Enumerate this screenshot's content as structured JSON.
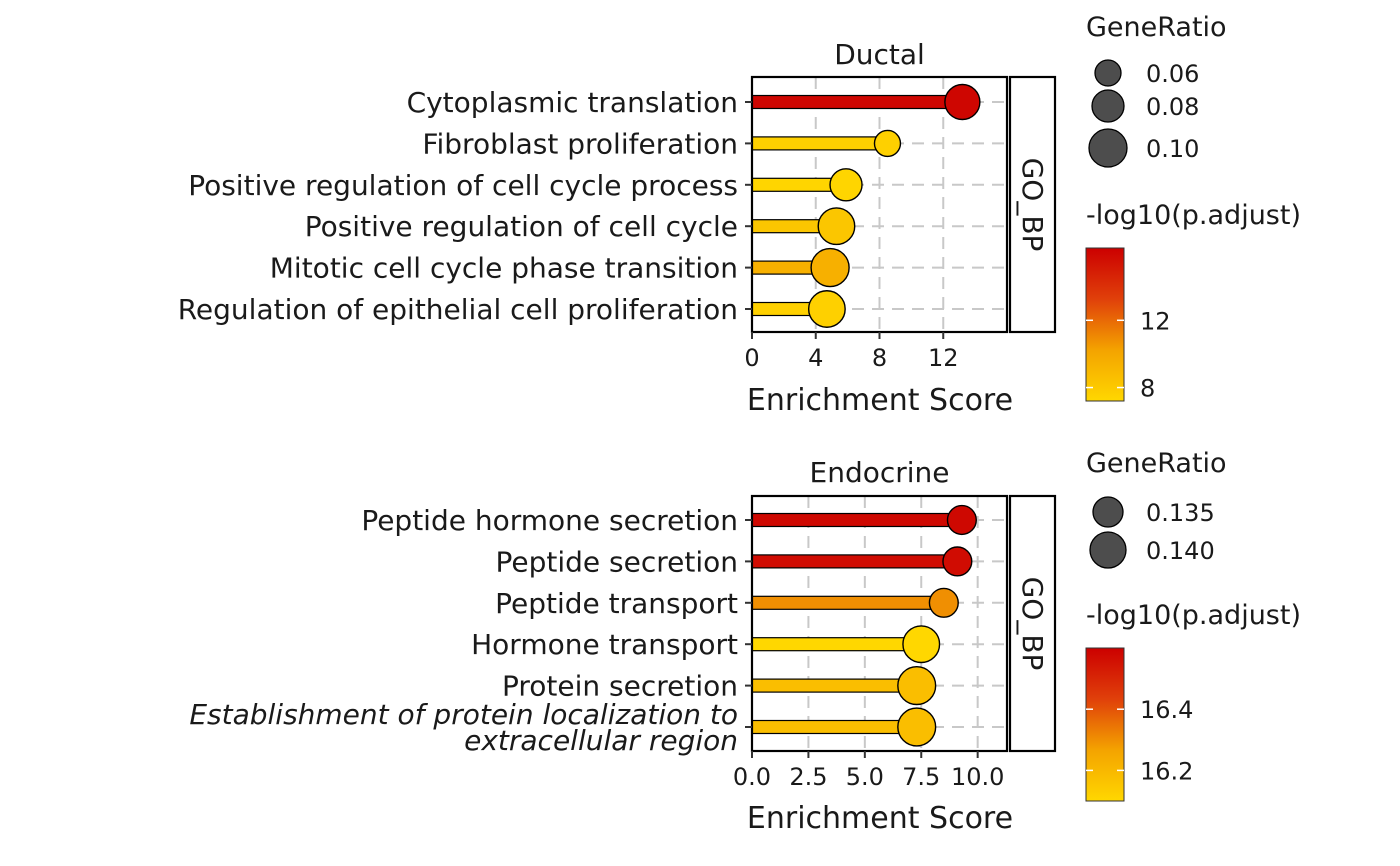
{
  "chart_data": [
    {
      "type": "lollipop",
      "title": "Ductal",
      "facet": "GO_BP",
      "xlabel": "Enrichment Score",
      "xlim": [
        0,
        16
      ],
      "xticks": [
        0,
        4,
        8,
        12
      ],
      "xtick_labels": [
        "0",
        "4",
        "8",
        "12"
      ],
      "categories": [
        "Cytoplasmic translation",
        "Fibroblast proliferation",
        "Positive regulation of cell cycle process",
        "Positive regulation of cell cycle",
        "Mitotic cell cycle phase transition",
        "Regulation of epithelial cell proliferation"
      ],
      "values": [
        13.2,
        8.5,
        5.9,
        5.3,
        4.9,
        4.7
      ],
      "gene_ratio": [
        0.09,
        0.06,
        0.08,
        0.095,
        0.1,
        0.095
      ],
      "neglog10_padj": [
        16.0,
        7.6,
        7.3,
        8.2,
        9.5,
        7.6
      ],
      "legend_size": {
        "title": "GeneRatio",
        "values": [
          0.06,
          0.08,
          0.1
        ],
        "labels": [
          "0.06",
          "0.08",
          "0.10"
        ]
      },
      "legend_color": {
        "title": "-log10(p.adjust)",
        "range": [
          7.2,
          16.3
        ],
        "ticks": [
          8,
          12
        ],
        "tick_labels": [
          "8",
          "12"
        ],
        "colors": [
          "#FFD700",
          "#F4A300",
          "#E0400A",
          "#CC0000"
        ]
      }
    },
    {
      "type": "lollipop",
      "title": "Endocrine",
      "facet": "GO_BP",
      "xlabel": "Enrichment Score",
      "xlim": [
        0,
        11.3
      ],
      "xticks": [
        0,
        2.5,
        5,
        7.5,
        10
      ],
      "xtick_labels": [
        "0.0",
        "2.5",
        "5.0",
        "7.5",
        "10.0"
      ],
      "categories": [
        "Peptide hormone secretion",
        "Peptide secretion",
        "Peptide transport",
        "Hormone transport",
        "Protein secretion",
        "Establishment of protein localization to extracellular region"
      ],
      "category_lines": [
        [
          "Peptide hormone secretion"
        ],
        [
          "Peptide secretion"
        ],
        [
          "Peptide transport"
        ],
        [
          "Hormone transport"
        ],
        [
          "Protein secretion"
        ],
        [
          "Establishment of protein localization to",
          "extracellular region"
        ]
      ],
      "italic_categories": [
        5
      ],
      "values": [
        9.3,
        9.1,
        8.5,
        7.5,
        7.3,
        7.3
      ],
      "gene_ratio": [
        0.134,
        0.134,
        0.134,
        0.1405,
        0.1415,
        0.1415
      ],
      "neglog10_padj": [
        16.58,
        16.57,
        16.3,
        16.1,
        16.18,
        16.18
      ],
      "legend_size": {
        "title": "GeneRatio",
        "values": [
          0.135,
          0.14
        ],
        "labels": [
          "0.135",
          "0.140"
        ]
      },
      "legend_color": {
        "title": "-log10(p.adjust)",
        "range": [
          16.1,
          16.6
        ],
        "ticks": [
          16.2,
          16.4
        ],
        "tick_labels": [
          "16.2",
          "16.4"
        ],
        "colors": [
          "#FFD700",
          "#F4A300",
          "#E0400A",
          "#CC0000"
        ]
      }
    }
  ]
}
